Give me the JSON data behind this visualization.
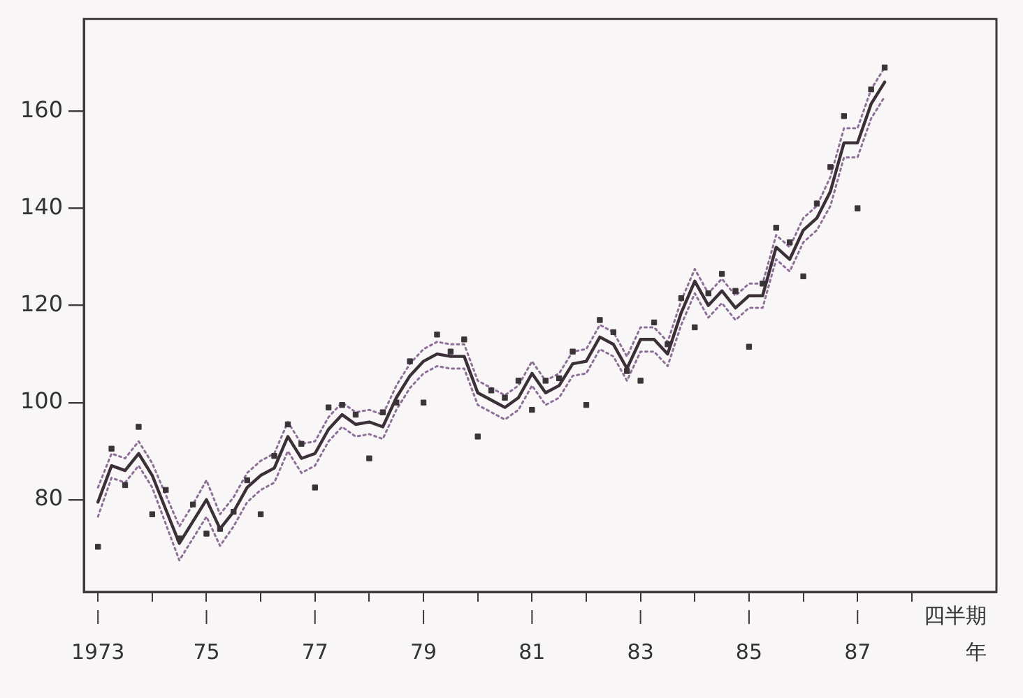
{
  "chart_data": {
    "type": "line",
    "xlabel": "四半期",
    "annotations": [
      "年"
    ],
    "x": [
      1973,
      1973.25,
      1973.5,
      1973.75,
      1974,
      1974.25,
      1974.5,
      1974.75,
      1975,
      1975.25,
      1975.5,
      1975.75,
      1976,
      1976.25,
      1976.5,
      1976.75,
      1977,
      1977.25,
      1977.5,
      1977.75,
      1978,
      1978.25,
      1978.5,
      1978.75,
      1979,
      1979.25,
      1979.5,
      1979.75,
      1980,
      1980.25,
      1980.5,
      1980.75,
      1981,
      1981.25,
      1981.5,
      1981.75,
      1982,
      1982.25,
      1982.5,
      1982.75,
      1983,
      1983.25,
      1983.5,
      1983.75,
      1984,
      1984.25,
      1984.5,
      1984.75,
      1985,
      1985.25,
      1985.5,
      1985.75,
      1986,
      1986.25,
      1986.5,
      1986.75,
      1987,
      1987.25,
      1987.5
    ],
    "xlim": [
      1972.74,
      1989.56
    ],
    "xticks": [
      {
        "value": 1973,
        "label": "1973"
      },
      {
        "value": 1974,
        "label": null
      },
      {
        "value": 1975,
        "label": "75"
      },
      {
        "value": 1976,
        "label": null
      },
      {
        "value": 1977,
        "label": "77"
      },
      {
        "value": 1978,
        "label": null
      },
      {
        "value": 1979,
        "label": "79"
      },
      {
        "value": 1980,
        "label": null
      },
      {
        "value": 1981,
        "label": "81"
      },
      {
        "value": 1982,
        "label": null
      },
      {
        "value": 1983,
        "label": "83"
      },
      {
        "value": 1984,
        "label": null
      },
      {
        "value": 1985,
        "label": "85"
      },
      {
        "value": 1986,
        "label": null
      },
      {
        "value": 1987,
        "label": "87"
      },
      {
        "value": 1988,
        "label": null
      }
    ],
    "ylim": [
      61,
      179
    ],
    "yticks": [
      80,
      100,
      120,
      140,
      160
    ],
    "grid": false,
    "series": [
      {
        "type": "scatter",
        "marker": "square",
        "color": "#3a3438",
        "values": [
          70.3,
          90.5,
          83,
          95,
          77,
          82,
          72,
          79,
          73,
          74,
          77.5,
          84,
          77,
          89,
          95.5,
          91.5,
          82.5,
          99,
          99.5,
          97.5,
          88.5,
          98,
          100,
          108.5,
          100,
          114,
          110.5,
          113,
          93,
          102.5,
          101,
          104.5,
          98.5,
          104.5,
          105,
          110.5,
          99.5,
          117,
          114.5,
          106.5,
          104.5,
          116.5,
          112,
          121.5,
          115.5,
          122.5,
          126.5,
          123,
          111.5,
          124.5,
          136,
          133,
          126,
          141,
          148.5,
          159,
          140,
          164.5,
          169
        ]
      },
      {
        "color": "#3b2f38",
        "values": [
          79.5,
          87,
          86,
          89.5,
          85,
          78,
          71,
          75.5,
          80,
          74,
          77.5,
          82.5,
          85,
          86.5,
          93,
          88.5,
          89.5,
          94.5,
          97.5,
          95.5,
          96,
          95,
          101,
          105.5,
          108.5,
          110,
          109.5,
          109.5,
          102,
          100.5,
          99,
          101,
          106,
          102,
          103.5,
          108,
          108.5,
          113.5,
          112,
          107,
          113,
          113,
          110,
          118.5,
          125,
          120,
          123,
          119.5,
          122,
          122,
          132,
          129.5,
          135.5,
          138,
          143.5,
          153.5,
          153.5,
          161.5,
          166
        ]
      },
      {
        "line_style": "dotted",
        "color": "#8e6f98",
        "values": [
          82.5,
          89.5,
          88.5,
          92,
          87.5,
          81,
          74.5,
          79,
          84,
          77,
          80.5,
          85.5,
          88,
          89.5,
          96,
          91.5,
          92,
          97,
          100,
          98,
          98.5,
          97.5,
          103.5,
          108,
          111,
          112.5,
          112,
          112,
          104.5,
          103,
          101.5,
          103.5,
          108.5,
          104.5,
          106,
          110.5,
          111,
          116,
          114.5,
          109.5,
          115.5,
          115.5,
          112.5,
          121,
          127.5,
          122.5,
          125.5,
          122,
          124.5,
          124.5,
          134.5,
          132,
          138,
          140.5,
          146.5,
          156.5,
          156.5,
          164.5,
          169
        ]
      },
      {
        "line_style": "dotted",
        "color": "#8e6f98",
        "values": [
          76.5,
          84.5,
          83.5,
          87,
          82.5,
          75,
          67.5,
          72,
          76.5,
          70.5,
          74.5,
          79.5,
          82,
          83.5,
          90,
          85.5,
          87,
          92,
          95,
          93,
          93.5,
          92.5,
          98.5,
          103,
          106,
          107.5,
          107,
          107,
          99.5,
          98,
          96.5,
          98.5,
          103.5,
          99.5,
          101,
          105.5,
          106,
          111,
          109.5,
          104.5,
          110.5,
          110.5,
          107.5,
          116,
          122.5,
          117.5,
          120.5,
          117,
          119.5,
          119.5,
          129.5,
          127,
          133,
          135.5,
          140.5,
          150.5,
          150.5,
          158.5,
          163
        ]
      }
    ]
  }
}
